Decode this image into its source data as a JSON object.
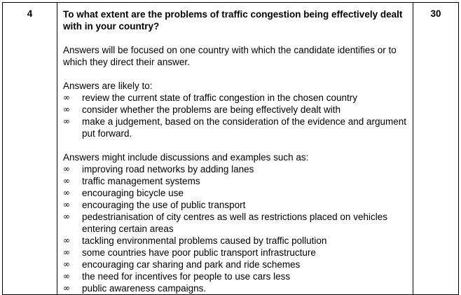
{
  "question": {
    "number": "4",
    "text": "To what extent are the problems of traffic congestion being effectively dealt with in your country?",
    "marks": "30"
  },
  "focus_note": "Answers will be focused on one country with which the candidate identifies or to which they direct their answer.",
  "bullet_icon": "infinity-bullet-icon",
  "bullet_glyph": "∞",
  "likely": {
    "intro": "Answers are likely to:",
    "items": [
      "review the current state of traffic congestion in the chosen country",
      "consider whether the problems are being effectively dealt with",
      "make a judgement, based on the consideration of the evidence and argument put forward."
    ]
  },
  "examples": {
    "intro": "Answers might include discussions and examples such as:",
    "items": [
      "improving road networks by adding lanes",
      "traffic management systems",
      "encouraging bicycle use",
      "encouraging the use of public transport",
      "pedestrianisation of city centres as well as restrictions placed on vehicles entering certain areas",
      "tackling environmental problems caused by traffic pollution",
      "some countries have poor public transport infrastructure",
      "encouraging car sharing and park and ride schemes",
      "the need for incentives for people to use cars less",
      "public awareness campaigns."
    ]
  }
}
